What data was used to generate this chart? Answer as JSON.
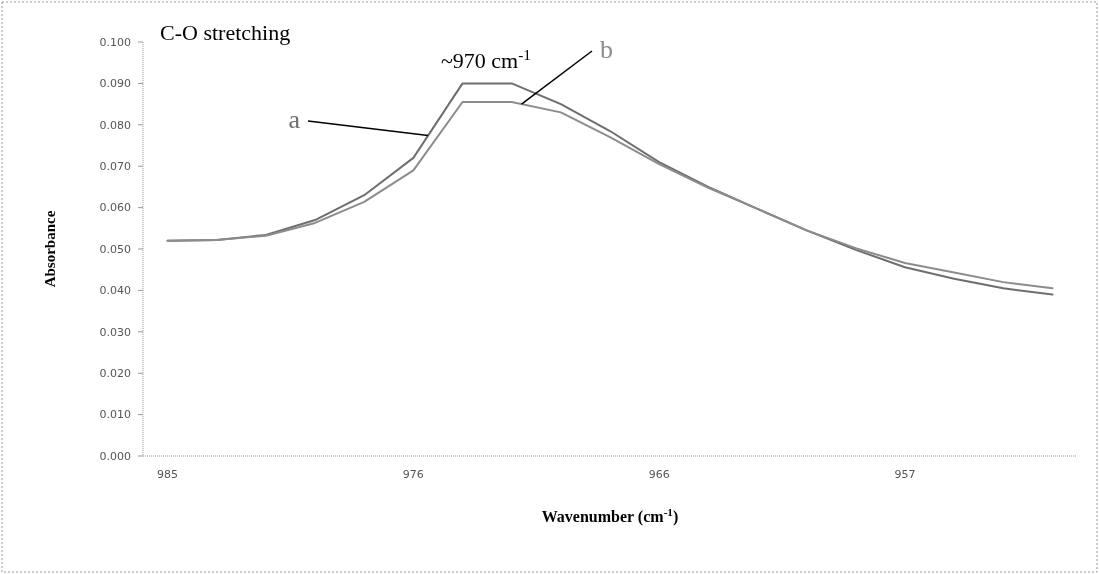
{
  "chart_data": {
    "type": "line",
    "title": "C-O stretching",
    "annotations": [
      "~970 cm$^{-1}$"
    ],
    "xlabel": "Wavenumber (cm$^{-1}$)",
    "ylabel": "Absorbance",
    "categories": [
      "985",
      null,
      null,
      null,
      null,
      "976",
      null,
      null,
      null,
      null,
      "966",
      null,
      null,
      null,
      null,
      "957",
      null,
      null,
      null
    ],
    "series": [
      {
        "name": "a",
        "color": "#6e6e6e",
        "values": [
          0.052,
          0.0522,
          0.0534,
          0.057,
          0.063,
          0.072,
          0.09,
          0.09,
          0.085,
          0.0785,
          0.071,
          0.065,
          0.0597,
          0.0545,
          0.0498,
          0.0456,
          0.0428,
          0.0405,
          0.039
        ]
      },
      {
        "name": "b",
        "color": "#8c8c8c",
        "values": [
          0.052,
          0.0522,
          0.0532,
          0.0563,
          0.0614,
          0.069,
          0.0855,
          0.0855,
          0.083,
          0.077,
          0.0705,
          0.0648,
          0.0597,
          0.0545,
          0.0502,
          0.0466,
          0.0443,
          0.042,
          0.0405
        ]
      }
    ],
    "ylim": [
      0,
      0.1
    ],
    "yticks": [
      {
        "value": 0,
        "label": "0.000"
      },
      {
        "value": 0.01,
        "label": "0.010"
      },
      {
        "value": 0.02,
        "label": "0.020"
      },
      {
        "value": 0.03,
        "label": "0.030"
      },
      {
        "value": 0.04,
        "label": "0.040"
      },
      {
        "value": 0.05,
        "label": "0.050"
      },
      {
        "value": 0.06,
        "label": "0.060"
      },
      {
        "value": 0.07,
        "label": "0.070"
      },
      {
        "value": 0.08,
        "label": "0.080"
      },
      {
        "value": 0.09,
        "label": "0.090"
      },
      {
        "value": 0.1,
        "label": "0.100"
      }
    ],
    "grid": false,
    "legend": false,
    "marker": "none",
    "line_style": "solid"
  }
}
